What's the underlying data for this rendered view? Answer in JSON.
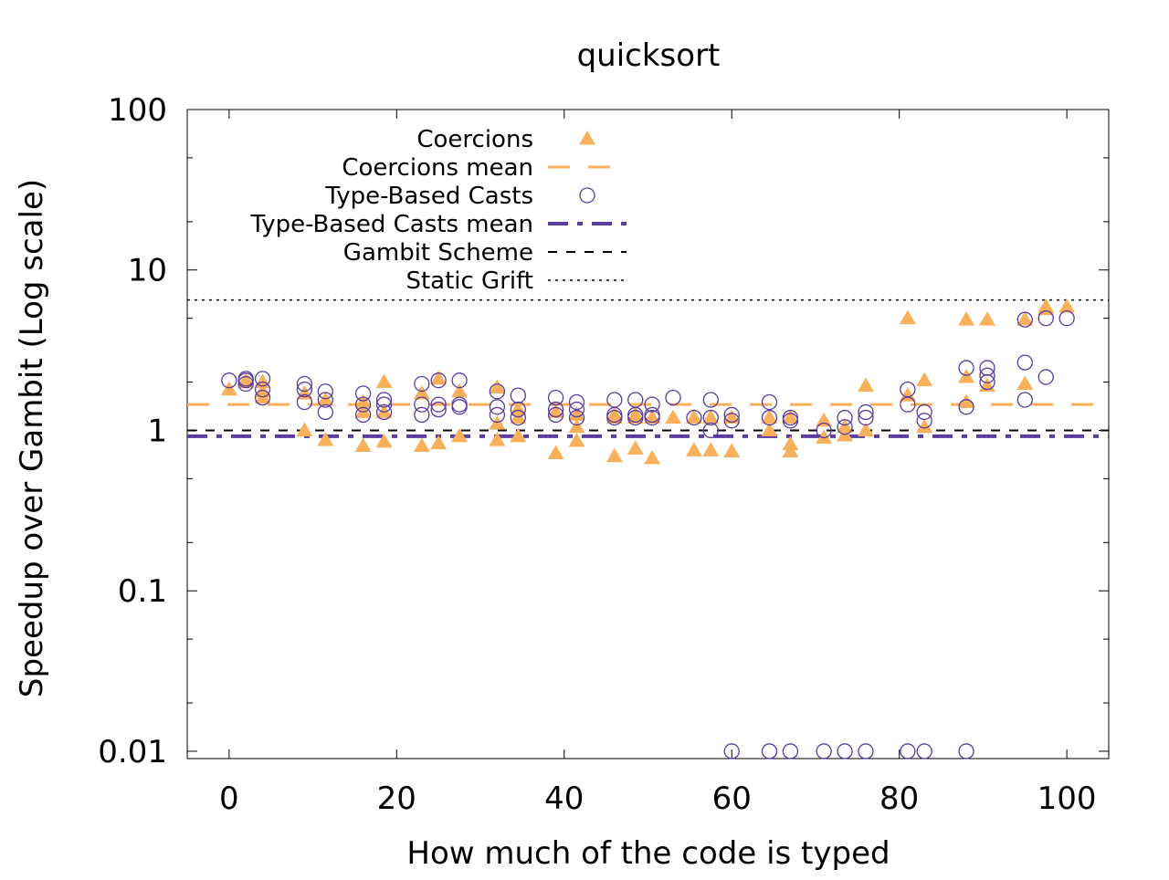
{
  "chart_data": {
    "type": "scatter",
    "title": "quicksort",
    "xlabel": "How much of the code is typed",
    "ylabel": "Speedup over Gambit (Log scale)",
    "y_scale": "log",
    "xlim": [
      -5,
      105
    ],
    "ylim": [
      0.009,
      100
    ],
    "x_ticks": [
      0,
      20,
      40,
      60,
      80,
      100
    ],
    "x_tick_labels": [
      "0",
      "20",
      "40",
      "60",
      "80",
      "100"
    ],
    "y_ticks": [
      0.01,
      0.1,
      1,
      10,
      100
    ],
    "y_tick_labels": [
      "0.01",
      "0.1",
      "1",
      "10",
      "100"
    ],
    "grid": false,
    "legend_position": "top-left",
    "colors": {
      "coercions": "#f9b05a",
      "casts": "#5a3b9e",
      "baseline": "#000000"
    },
    "series": [
      {
        "name": "Coercions",
        "kind": "points",
        "marker": "triangle",
        "points": [
          [
            0,
            1.8
          ],
          [
            2,
            2.0
          ],
          [
            2,
            2.05
          ],
          [
            4,
            1.6
          ],
          [
            4,
            1.75
          ],
          [
            4,
            2.0
          ],
          [
            9,
            1.7
          ],
          [
            9,
            1.0
          ],
          [
            11.5,
            0.87
          ],
          [
            11.5,
            1.55
          ],
          [
            16,
            0.8
          ],
          [
            16,
            1.3
          ],
          [
            16,
            1.5
          ],
          [
            18.5,
            0.85
          ],
          [
            18.5,
            1.3
          ],
          [
            18.5,
            2.0
          ],
          [
            23,
            0.8
          ],
          [
            23,
            1.7
          ],
          [
            25,
            0.83
          ],
          [
            25,
            2.1
          ],
          [
            27.5,
            0.92
          ],
          [
            27.5,
            1.75
          ],
          [
            32,
            0.87
          ],
          [
            32,
            1.1
          ],
          [
            32,
            1.85
          ],
          [
            34.5,
            0.92
          ],
          [
            34.5,
            1.2
          ],
          [
            34.5,
            1.35
          ],
          [
            39,
            0.72
          ],
          [
            39,
            1.3
          ],
          [
            41.5,
            0.86
          ],
          [
            41.5,
            1.05
          ],
          [
            41.5,
            1.25
          ],
          [
            46,
            0.69
          ],
          [
            46,
            1.2
          ],
          [
            46,
            1.25
          ],
          [
            48.5,
            0.77
          ],
          [
            48.5,
            1.2
          ],
          [
            48.5,
            1.25
          ],
          [
            50.5,
            0.67
          ],
          [
            50.5,
            1.2
          ],
          [
            53,
            1.2
          ],
          [
            55.5,
            0.75
          ],
          [
            55.5,
            1.2
          ],
          [
            57.5,
            0.75
          ],
          [
            57.5,
            1.2
          ],
          [
            60,
            0.74
          ],
          [
            60,
            1.2
          ],
          [
            64.5,
            1.0
          ],
          [
            64.5,
            1.2
          ],
          [
            67,
            0.74
          ],
          [
            67,
            0.82
          ],
          [
            67,
            1.2
          ],
          [
            71,
            0.9
          ],
          [
            71,
            1.15
          ],
          [
            73.5,
            0.93
          ],
          [
            73.5,
            1.05
          ],
          [
            76,
            1.0
          ],
          [
            76,
            1.9
          ],
          [
            81,
            1.65
          ],
          [
            81,
            5.0
          ],
          [
            83,
            1.05
          ],
          [
            83,
            2.05
          ],
          [
            88,
            1.5
          ],
          [
            88,
            2.15
          ],
          [
            88,
            4.9
          ],
          [
            90.5,
            1.9
          ],
          [
            90.5,
            4.9
          ],
          [
            95,
            1.95
          ],
          [
            95,
            4.9
          ],
          [
            97.5,
            5.7
          ],
          [
            97.5,
            5.9
          ],
          [
            100,
            5.9
          ]
        ]
      },
      {
        "name": "Coercions mean",
        "kind": "hline",
        "value": 1.45,
        "dash": "24 20",
        "stroke_width": 3
      },
      {
        "name": "Type-Based Casts",
        "kind": "points",
        "marker": "circle",
        "points": [
          [
            0,
            2.05
          ],
          [
            2,
            1.95
          ],
          [
            2,
            2.05
          ],
          [
            2,
            2.1
          ],
          [
            4,
            1.6
          ],
          [
            4,
            1.8
          ],
          [
            4,
            2.1
          ],
          [
            9,
            1.5
          ],
          [
            9,
            1.8
          ],
          [
            9,
            1.95
          ],
          [
            11.5,
            1.3
          ],
          [
            11.5,
            1.55
          ],
          [
            11.5,
            1.75
          ],
          [
            16,
            1.25
          ],
          [
            16,
            1.45
          ],
          [
            16,
            1.7
          ],
          [
            18.5,
            1.3
          ],
          [
            18.5,
            1.45
          ],
          [
            18.5,
            1.55
          ],
          [
            23,
            1.25
          ],
          [
            23,
            1.45
          ],
          [
            23,
            1.95
          ],
          [
            25,
            1.35
          ],
          [
            25,
            1.45
          ],
          [
            25,
            2.05
          ],
          [
            27.5,
            1.4
          ],
          [
            27.5,
            1.45
          ],
          [
            27.5,
            2.05
          ],
          [
            32,
            1.25
          ],
          [
            32,
            1.4
          ],
          [
            32,
            1.75
          ],
          [
            34.5,
            1.2
          ],
          [
            34.5,
            1.35
          ],
          [
            34.5,
            1.65
          ],
          [
            39,
            1.25
          ],
          [
            39,
            1.35
          ],
          [
            39,
            1.6
          ],
          [
            41.5,
            1.2
          ],
          [
            41.5,
            1.35
          ],
          [
            41.5,
            1.5
          ],
          [
            46,
            1.2
          ],
          [
            46,
            1.25
          ],
          [
            46,
            1.55
          ],
          [
            48.5,
            1.2
          ],
          [
            48.5,
            1.25
          ],
          [
            48.5,
            1.55
          ],
          [
            50.5,
            1.2
          ],
          [
            50.5,
            1.25
          ],
          [
            50.5,
            1.45
          ],
          [
            53,
            1.6
          ],
          [
            55.5,
            1.2
          ],
          [
            57.5,
            1.0
          ],
          [
            57.5,
            1.2
          ],
          [
            57.5,
            1.55
          ],
          [
            60,
            0.01
          ],
          [
            60,
            1.15
          ],
          [
            60,
            1.25
          ],
          [
            64.5,
            0.01
          ],
          [
            64.5,
            1.2
          ],
          [
            64.5,
            1.5
          ],
          [
            67,
            0.01
          ],
          [
            67,
            1.15
          ],
          [
            67,
            1.2
          ],
          [
            71,
            0.01
          ],
          [
            71,
            1.0
          ],
          [
            73.5,
            0.01
          ],
          [
            73.5,
            1.05
          ],
          [
            73.5,
            1.2
          ],
          [
            76,
            0.01
          ],
          [
            76,
            1.2
          ],
          [
            76,
            1.3
          ],
          [
            81,
            0.01
          ],
          [
            81,
            1.45
          ],
          [
            81,
            1.8
          ],
          [
            83,
            0.01
          ],
          [
            83,
            1.15
          ],
          [
            83,
            1.3
          ],
          [
            88,
            0.01
          ],
          [
            88,
            1.4
          ],
          [
            88,
            2.45
          ],
          [
            90.5,
            2.0
          ],
          [
            90.5,
            2.2
          ],
          [
            90.5,
            2.45
          ],
          [
            95,
            1.55
          ],
          [
            95,
            2.65
          ],
          [
            95,
            4.9
          ],
          [
            97.5,
            2.15
          ],
          [
            97.5,
            5.0
          ],
          [
            100,
            5.0
          ]
        ]
      },
      {
        "name": "Type-Based Casts mean",
        "kind": "hline",
        "value": 0.92,
        "dash": "22 10 6 10",
        "stroke_width": 4
      },
      {
        "name": "Gambit Scheme",
        "kind": "hline",
        "value": 1.0,
        "dash": "10 10",
        "stroke_width": 2
      },
      {
        "name": "Static Grift",
        "kind": "hline",
        "value": 6.5,
        "dash": "3 5",
        "stroke_width": 1.5
      }
    ]
  }
}
